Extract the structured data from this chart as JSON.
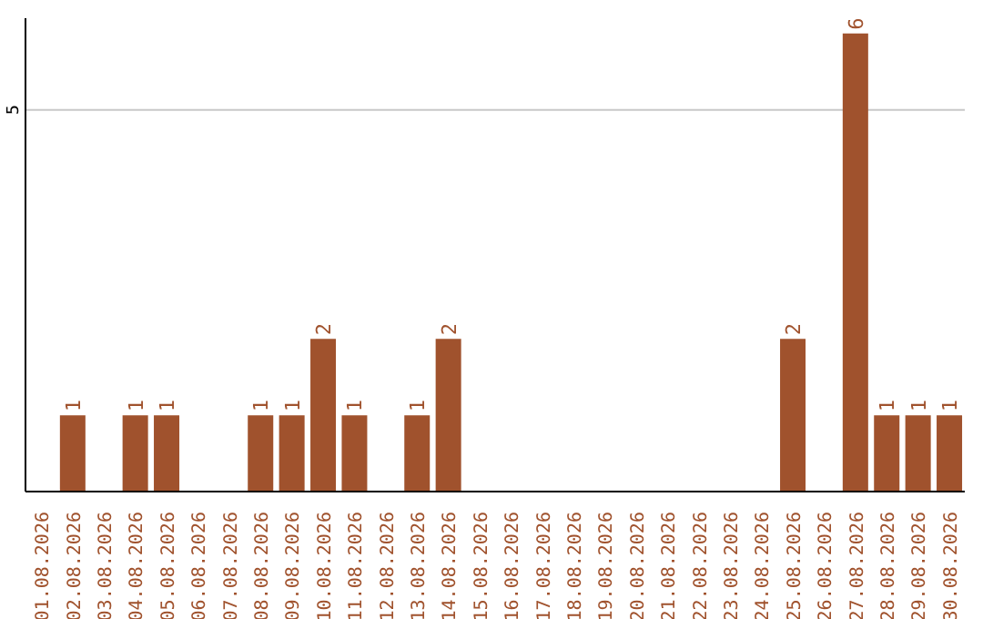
{
  "chart_data": {
    "type": "bar",
    "categories": [
      "01.08.2026",
      "02.08.2026",
      "03.08.2026",
      "04.08.2026",
      "05.08.2026",
      "06.08.2026",
      "07.08.2026",
      "08.08.2026",
      "09.08.2026",
      "10.08.2026",
      "11.08.2026",
      "12.08.2026",
      "13.08.2026",
      "14.08.2026",
      "15.08.2026",
      "16.08.2026",
      "17.08.2026",
      "18.08.2026",
      "19.08.2026",
      "20.08.2026",
      "21.08.2026",
      "22.08.2026",
      "23.08.2026",
      "24.08.2026",
      "25.08.2026",
      "26.08.2026",
      "27.08.2026",
      "28.08.2026",
      "29.08.2026",
      "30.08.2026"
    ],
    "values": [
      0,
      1,
      0,
      1,
      1,
      0,
      0,
      1,
      1,
      2,
      1,
      0,
      1,
      2,
      0,
      0,
      0,
      0,
      0,
      0,
      0,
      0,
      0,
      0,
      2,
      0,
      6,
      1,
      1,
      1
    ],
    "value_labels": [
      null,
      "1",
      null,
      "1",
      "1",
      null,
      null,
      "1",
      "1",
      "2",
      "1",
      null,
      "1",
      "2",
      null,
      null,
      null,
      null,
      null,
      null,
      null,
      null,
      null,
      null,
      "2",
      null,
      "6",
      "1",
      "1",
      "1"
    ],
    "color": "#a0522d",
    "ylim": [
      0,
      6.2
    ],
    "yticks": [
      5
    ],
    "grid": "y"
  }
}
